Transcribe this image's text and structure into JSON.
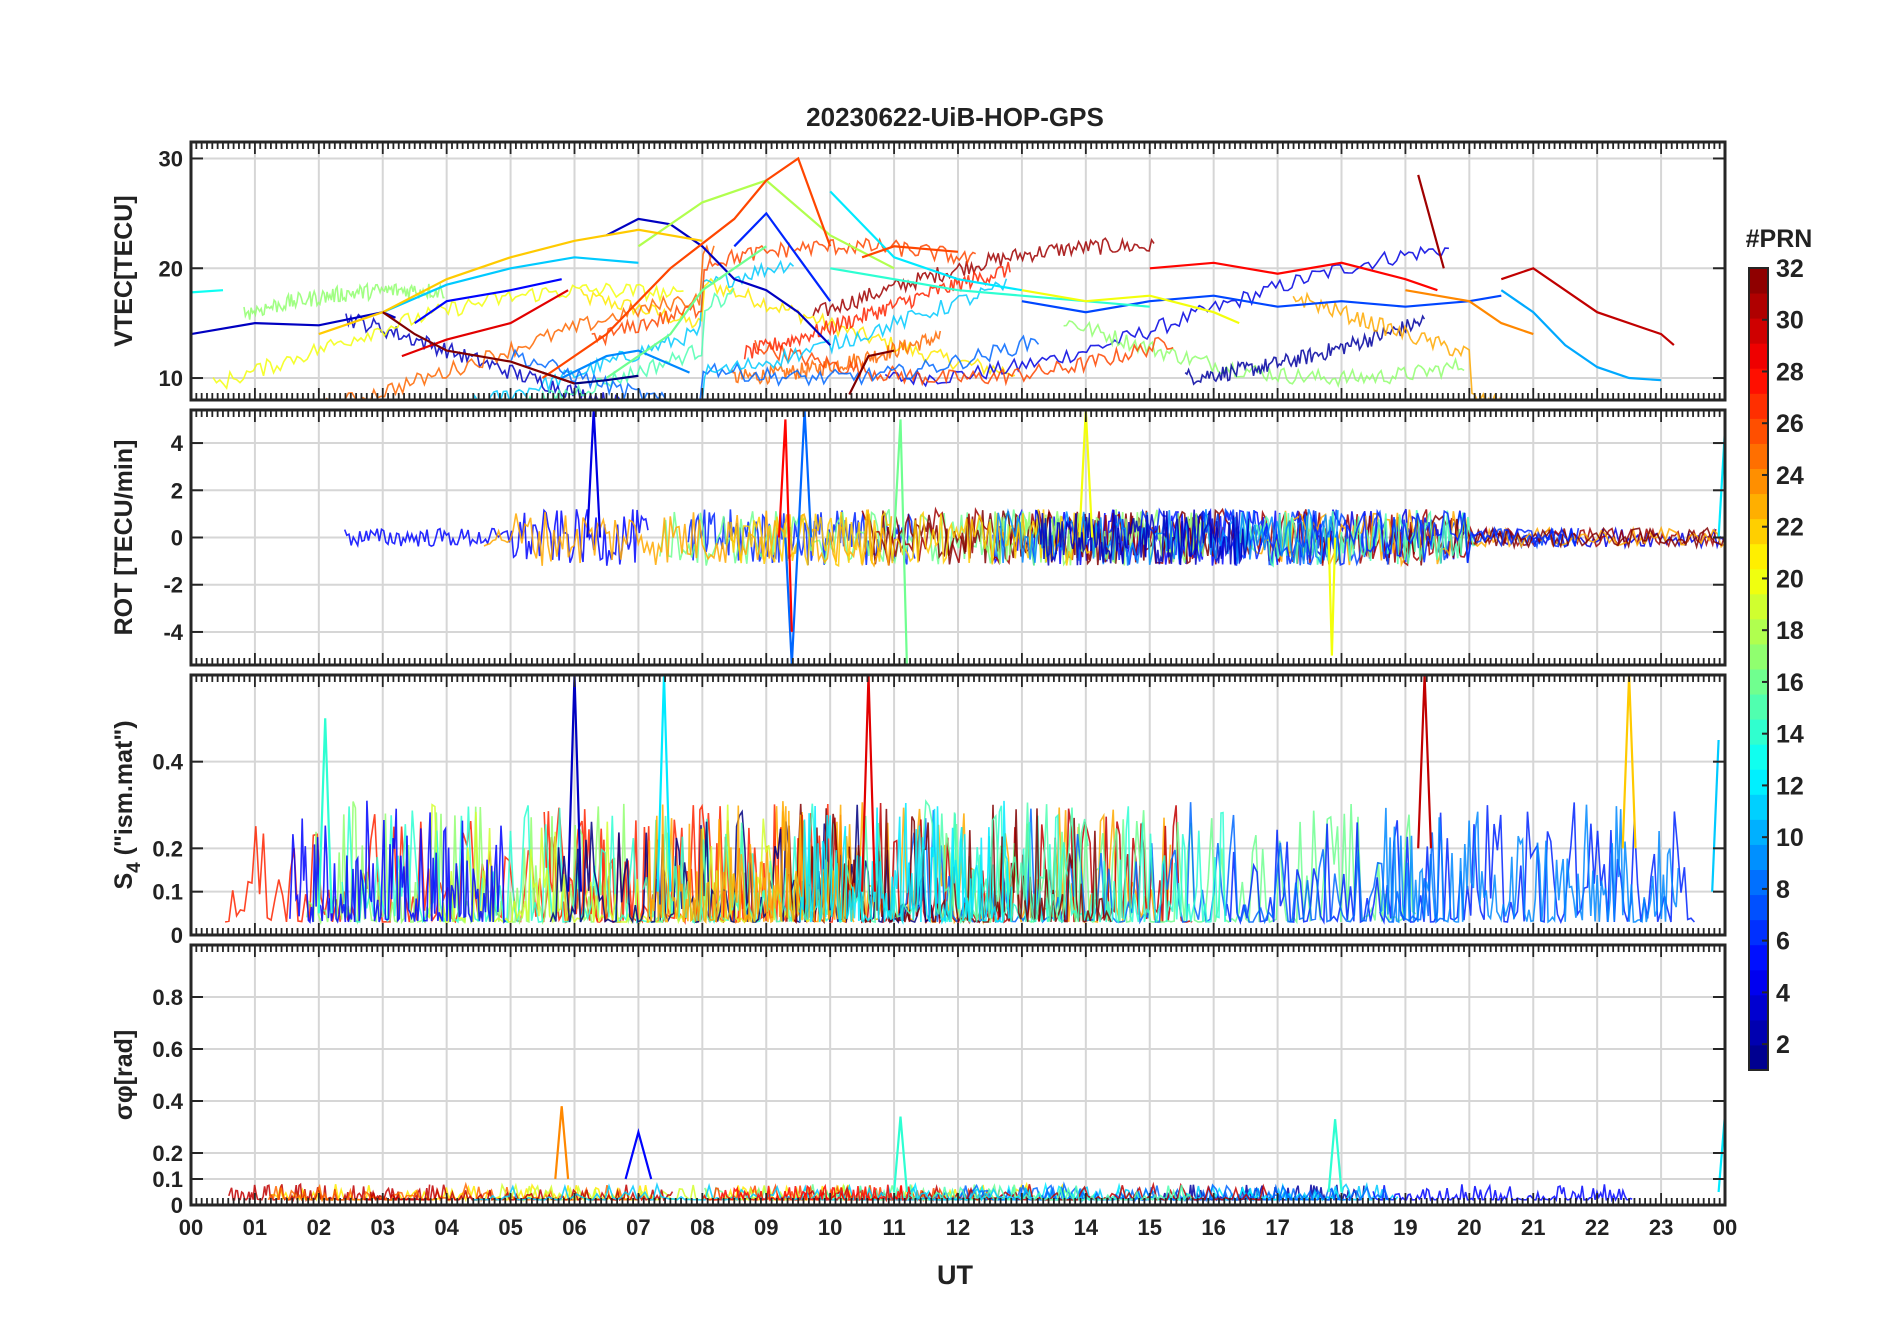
{
  "chart_data": {
    "type": "line",
    "title": "20230622-UiB-HOP-GPS",
    "xlabel": "UT",
    "x_tick_labels": [
      "00",
      "01",
      "02",
      "03",
      "04",
      "05",
      "06",
      "07",
      "08",
      "09",
      "10",
      "11",
      "12",
      "13",
      "14",
      "15",
      "16",
      "17",
      "18",
      "19",
      "20",
      "21",
      "22",
      "23",
      "00"
    ],
    "xlim": [
      0,
      24
    ],
    "grid": true,
    "colorbar": {
      "title": "#PRN",
      "range": [
        1,
        32
      ],
      "ticks": [
        2,
        4,
        6,
        8,
        10,
        12,
        14,
        16,
        18,
        20,
        22,
        24,
        26,
        28,
        30,
        32
      ],
      "colormap": "jet",
      "placement": "right"
    },
    "panels": [
      {
        "id": "vtec",
        "ylabel": "VTEC[TECU]",
        "ylim": [
          8,
          31.5
        ],
        "yticks": [
          10,
          20,
          30
        ],
        "series": [
          {
            "prn": 1,
            "x": [
              5.5,
              6.0,
              6.5,
              7.0
            ],
            "y": [
              10.5,
              9.5,
              9.8,
              10.2
            ]
          },
          {
            "prn": 3,
            "x": [
              0,
              1,
              2,
              3,
              3.2
            ],
            "y": [
              14,
              15,
              14.8,
              16,
              15.5
            ]
          },
          {
            "prn": 3,
            "x": [
              6.5,
              7.0,
              7.5,
              8.0,
              8.5,
              9.0,
              9.5,
              10.0
            ],
            "y": [
              23,
              24.5,
              24,
              22,
              19,
              18,
              16,
              13
            ]
          },
          {
            "prn": 5,
            "x": [
              3.5,
              4.0,
              4.5,
              5.0,
              5.8
            ],
            "y": [
              15,
              17,
              17.5,
              18,
              19
            ]
          },
          {
            "prn": 6,
            "x": [
              8.5,
              9.0,
              9.5,
              10.0
            ],
            "y": [
              22,
              25,
              21,
              17
            ]
          },
          {
            "prn": 7,
            "x": [
              13,
              14,
              15,
              16,
              17,
              18,
              19,
              20,
              20.5
            ],
            "y": [
              17,
              16,
              17,
              17.5,
              16.5,
              17,
              16.5,
              17,
              17.5
            ]
          },
          {
            "prn": 9,
            "x": [
              5.8,
              6.5,
              7.0,
              7.8
            ],
            "y": [
              10,
              12,
              12.5,
              10.5
            ]
          },
          {
            "prn": 10,
            "x": [
              20.5,
              21,
              21.5,
              22,
              22.5,
              23
            ],
            "y": [
              18,
              16,
              13,
              11,
              10,
              9.8
            ]
          },
          {
            "prn": 11,
            "x": [
              3,
              4,
              5,
              6,
              7
            ],
            "y": [
              16,
              18.5,
              20,
              21,
              20.5
            ]
          },
          {
            "prn": 12,
            "x": [
              10,
              11,
              12,
              13
            ],
            "y": [
              27,
              21,
              19,
              18
            ]
          },
          {
            "prn": 13,
            "x": [
              0,
              0.5
            ],
            "y": [
              17.8,
              18
            ]
          },
          {
            "prn": 14,
            "x": [
              10,
              11,
              12,
              13,
              14,
              15
            ],
            "y": [
              20,
              19,
              18,
              17.5,
              17,
              16.5
            ]
          },
          {
            "prn": 16,
            "x": [
              6.5,
              7.0,
              7.5,
              8.0,
              8.5,
              9.0
            ],
            "y": [
              10,
              12,
              14,
              18,
              20,
              22
            ]
          },
          {
            "prn": 18,
            "x": [
              7,
              8,
              9,
              10,
              11
            ],
            "y": [
              22,
              26,
              28,
              23,
              20
            ]
          },
          {
            "prn": 20,
            "x": [
              13,
              14,
              15,
              16,
              16.4
            ],
            "y": [
              18,
              17,
              17.5,
              16,
              15
            ]
          },
          {
            "prn": 22,
            "x": [
              2,
              3,
              4,
              5,
              6,
              7,
              8
            ],
            "y": [
              14,
              16,
              19,
              21,
              22.5,
              23.5,
              22.5
            ]
          },
          {
            "prn": 24,
            "x": [
              19,
              20,
              20.5,
              21
            ],
            "y": [
              18,
              17,
              15,
              14
            ]
          },
          {
            "prn": 26,
            "x": [
              5.5,
              6.5,
              7.5,
              8.5,
              9,
              9.5,
              10
            ],
            "y": [
              10,
              14,
              20,
              24.5,
              28,
              30,
              22
            ]
          },
          {
            "prn": 26,
            "x": [
              10.5,
              11,
              12
            ],
            "y": [
              21,
              22,
              21.5
            ]
          },
          {
            "prn": 28,
            "x": [
              15,
              16,
              17,
              18,
              19,
              19.5
            ],
            "y": [
              20,
              20.5,
              19.5,
              20.5,
              19,
              18
            ]
          },
          {
            "prn": 29,
            "x": [
              3.3,
              4,
              5,
              5.9
            ],
            "y": [
              12,
              13.5,
              15,
              18
            ]
          },
          {
            "prn": 30,
            "x": [
              20.5,
              21,
              22,
              23,
              23.2
            ],
            "y": [
              19,
              20,
              16,
              14,
              13
            ]
          },
          {
            "prn": 31,
            "x": [
              19.2,
              19.6
            ],
            "y": [
              28.5,
              20
            ]
          },
          {
            "prn": 32,
            "x": [
              3,
              3.5,
              4,
              4.5,
              5,
              5.5,
              6
            ],
            "y": [
              16,
              14,
              12.5,
              12,
              11.5,
              10.5,
              9.5
            ]
          },
          {
            "prn": 32,
            "x": [
              10.3,
              10.6,
              11
            ],
            "y": [
              8.5,
              12,
              12.5
            ]
          }
        ]
      },
      {
        "id": "rot",
        "ylabel": "ROT [TECU/min]",
        "ylim": [
          -5.4,
          5.4
        ],
        "yticks": [
          -4,
          -2,
          0,
          2,
          4
        ],
        "series": [
          {
            "prn": 4,
            "x": [
              6.2,
              6.3,
              6.4
            ],
            "y": [
              0,
              5.4,
              0
            ]
          },
          {
            "prn": 8,
            "x": [
              9.3,
              9.4,
              9.5,
              9.6,
              9.7
            ],
            "y": [
              0,
              -5.4,
              0,
              5.4,
              0
            ]
          },
          {
            "prn": 16,
            "x": [
              11.0,
              11.1,
              11.2
            ],
            "y": [
              0,
              5,
              -5.4
            ]
          },
          {
            "prn": 20,
            "x": [
              13.9,
              14.0,
              14.1
            ],
            "y": [
              0,
              5.4,
              0
            ]
          },
          {
            "prn": 20,
            "x": [
              17.8,
              17.85,
              17.9
            ],
            "y": [
              0,
              -5,
              0
            ]
          },
          {
            "prn": 28,
            "x": [
              9.2,
              9.3,
              9.4
            ],
            "y": [
              0,
              5,
              -4
            ]
          },
          {
            "prn": 12,
            "x": [
              23.9,
              24.0
            ],
            "y": [
              0,
              4.6
            ]
          }
        ]
      },
      {
        "id": "s4",
        "ylabel": "S4 (\"ism.mat\")",
        "ylabel_main": "S",
        "ylabel_sub": "4",
        "ylabel_rest": " (\"ism.mat\")",
        "ylim": [
          0,
          0.6
        ],
        "yticks": [
          0,
          0.1,
          0.2,
          0.4
        ],
        "series": [
          {
            "prn": 3,
            "x": [
              5.9,
              6.0,
              6.1
            ],
            "y": [
              0.1,
              0.6,
              0.1
            ]
          },
          {
            "prn": 12,
            "x": [
              7.3,
              7.4,
              7.5
            ],
            "y": [
              0.1,
              0.6,
              0.1
            ]
          },
          {
            "prn": 29,
            "x": [
              10.5,
              10.6,
              10.7
            ],
            "y": [
              0.1,
              0.6,
              0.1
            ]
          },
          {
            "prn": 30,
            "x": [
              19.2,
              19.3,
              19.4
            ],
            "y": [
              0.2,
              0.6,
              0.2
            ]
          },
          {
            "prn": 22,
            "x": [
              22.4,
              22.5,
              22.6
            ],
            "y": [
              0.2,
              0.6,
              0.2
            ]
          },
          {
            "prn": 14,
            "x": [
              2.0,
              2.1,
              2.2
            ],
            "y": [
              0.05,
              0.5,
              0.05
            ]
          },
          {
            "prn": 11,
            "x": [
              23.8,
              23.9
            ],
            "y": [
              0.1,
              0.45
            ]
          }
        ]
      },
      {
        "id": "sigphi",
        "ylabel": "σφ[rad]",
        "ylim": [
          0,
          1.0
        ],
        "yticks": [
          0,
          0.1,
          0.2,
          0.4,
          0.6,
          0.8
        ],
        "series": [
          {
            "prn": 24,
            "x": [
              5.7,
              5.8,
              5.9
            ],
            "y": [
              0.1,
              0.38,
              0.1
            ]
          },
          {
            "prn": 5,
            "x": [
              6.8,
              7.0,
              7.2
            ],
            "y": [
              0.1,
              0.28,
              0.1
            ]
          },
          {
            "prn": 14,
            "x": [
              17.8,
              17.9,
              18.0
            ],
            "y": [
              0.05,
              0.33,
              0.05
            ]
          },
          {
            "prn": 14,
            "x": [
              11.0,
              11.1,
              11.2
            ],
            "y": [
              0.05,
              0.34,
              0.05
            ]
          },
          {
            "prn": 12,
            "x": [
              23.9,
              24.0
            ],
            "y": [
              0.05,
              0.35
            ]
          }
        ]
      }
    ]
  }
}
